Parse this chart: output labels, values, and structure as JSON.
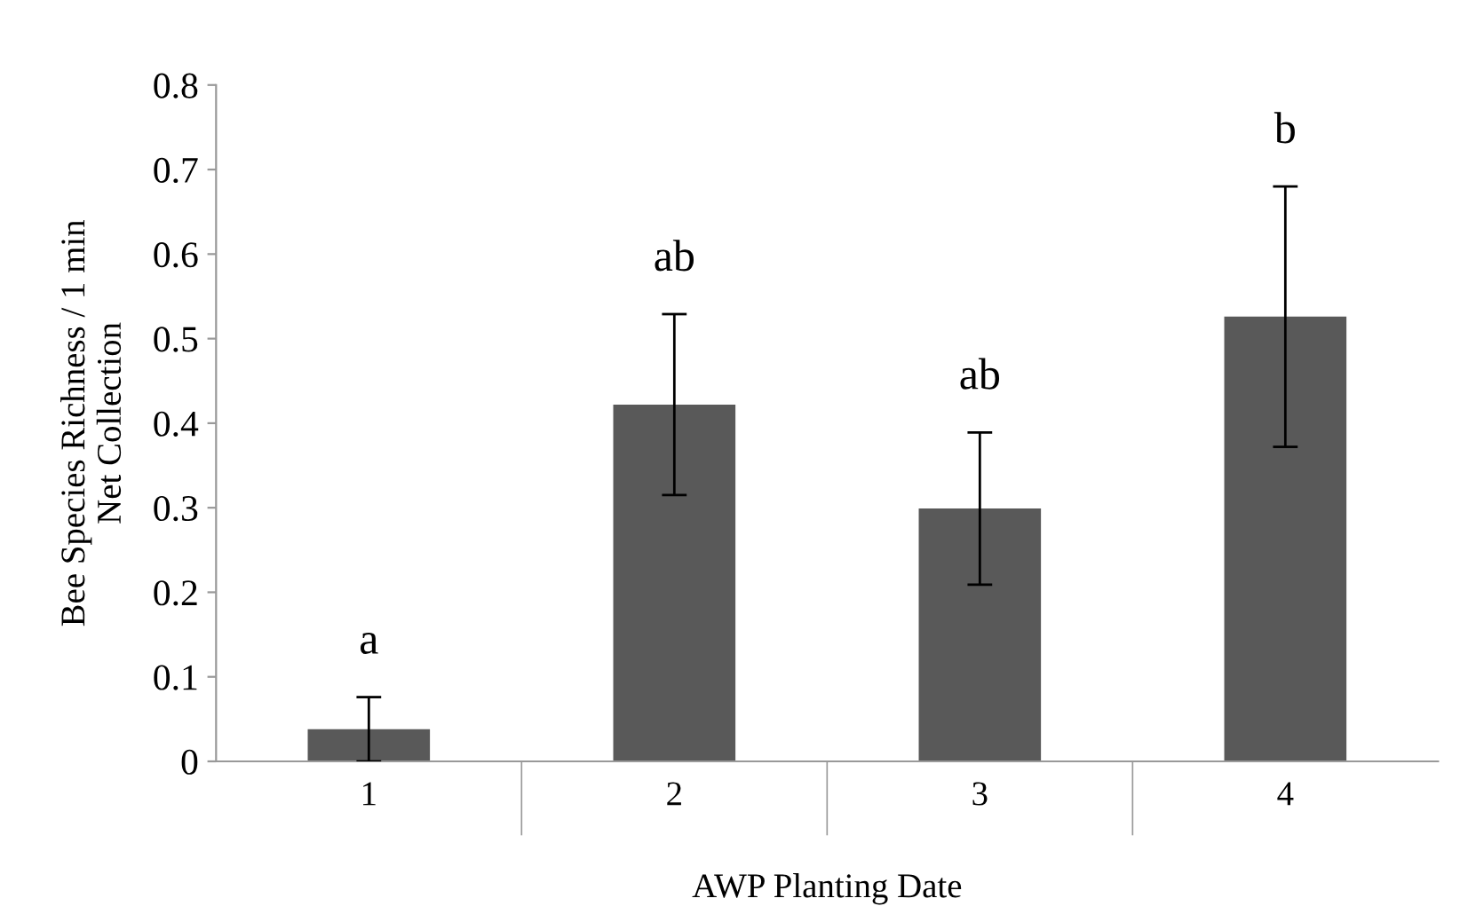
{
  "chart_data": {
    "type": "bar",
    "xlabel": "AWP Planting Date",
    "ylabel": "Bee Species Richness / 1 min\nNet Collection",
    "categories": [
      "1",
      "2",
      "3",
      "4"
    ],
    "values": [
      0.038,
      0.422,
      0.299,
      0.526
    ],
    "errors": [
      0.038,
      0.107,
      0.09,
      0.154
    ],
    "color": "#595959",
    "ylim": [
      0,
      0.8
    ],
    "yticks": [
      0,
      0.1,
      0.2,
      0.3,
      0.4,
      0.5,
      0.6,
      0.7,
      0.8
    ],
    "grid": false,
    "annotations": [
      "a",
      "ab",
      "ab",
      "b"
    ]
  }
}
